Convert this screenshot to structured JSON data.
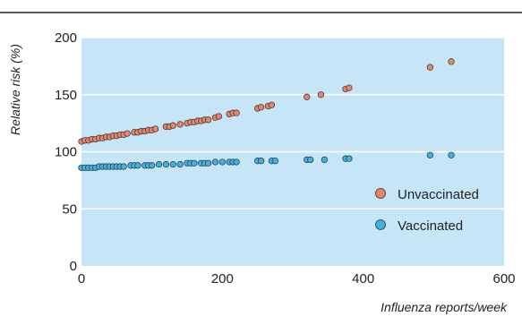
{
  "colors": {
    "plot_background": "#c6e6f7",
    "gridline": "#ffffff",
    "top_rule": "#222222",
    "unvaccinated": "#e8846a",
    "vaccinated": "#3db3e3",
    "marker_stroke": "#333333"
  },
  "chart_data": {
    "type": "scatter",
    "xlabel": "Influenza reports/week",
    "ylabel": "Relative risk (%)",
    "xlim": [
      0,
      600
    ],
    "ylim": [
      0,
      200
    ],
    "xticks": [
      "0",
      "200",
      "400",
      "600"
    ],
    "yticks": [
      "0",
      "50",
      "100",
      "150",
      "200"
    ],
    "grid": "horizontal",
    "legend_position": "bottom-right",
    "series": [
      {
        "name": "Unvaccinated",
        "color": "#e8846a",
        "points": [
          [
            0,
            109
          ],
          [
            5,
            110
          ],
          [
            10,
            110
          ],
          [
            15,
            111
          ],
          [
            20,
            111
          ],
          [
            25,
            112
          ],
          [
            30,
            112
          ],
          [
            35,
            113
          ],
          [
            40,
            113
          ],
          [
            45,
            114
          ],
          [
            50,
            114
          ],
          [
            55,
            115
          ],
          [
            60,
            115
          ],
          [
            65,
            116
          ],
          [
            75,
            117
          ],
          [
            80,
            117
          ],
          [
            85,
            118
          ],
          [
            90,
            118
          ],
          [
            95,
            119
          ],
          [
            100,
            119
          ],
          [
            105,
            120
          ],
          [
            120,
            122
          ],
          [
            125,
            122
          ],
          [
            130,
            123
          ],
          [
            140,
            124
          ],
          [
            150,
            125
          ],
          [
            155,
            126
          ],
          [
            160,
            126
          ],
          [
            165,
            127
          ],
          [
            170,
            127
          ],
          [
            175,
            128
          ],
          [
            180,
            128
          ],
          [
            190,
            130
          ],
          [
            195,
            131
          ],
          [
            210,
            133
          ],
          [
            215,
            134
          ],
          [
            220,
            134
          ],
          [
            250,
            138
          ],
          [
            255,
            139
          ],
          [
            265,
            140
          ],
          [
            270,
            141
          ],
          [
            320,
            148
          ],
          [
            340,
            150
          ],
          [
            375,
            155
          ],
          [
            380,
            156
          ],
          [
            495,
            174
          ],
          [
            525,
            179
          ]
        ]
      },
      {
        "name": "Vaccinated",
        "color": "#3db3e3",
        "points": [
          [
            0,
            86
          ],
          [
            5,
            86
          ],
          [
            10,
            86
          ],
          [
            15,
            86
          ],
          [
            20,
            86
          ],
          [
            25,
            87
          ],
          [
            30,
            87
          ],
          [
            35,
            87
          ],
          [
            40,
            87
          ],
          [
            45,
            87
          ],
          [
            50,
            87
          ],
          [
            55,
            87
          ],
          [
            60,
            87
          ],
          [
            70,
            88
          ],
          [
            75,
            88
          ],
          [
            80,
            88
          ],
          [
            90,
            88
          ],
          [
            95,
            88
          ],
          [
            100,
            88
          ],
          [
            110,
            89
          ],
          [
            120,
            89
          ],
          [
            130,
            89
          ],
          [
            140,
            89
          ],
          [
            150,
            90
          ],
          [
            155,
            90
          ],
          [
            160,
            90
          ],
          [
            170,
            90
          ],
          [
            175,
            90
          ],
          [
            180,
            90
          ],
          [
            190,
            91
          ],
          [
            200,
            91
          ],
          [
            210,
            91
          ],
          [
            215,
            91
          ],
          [
            220,
            91
          ],
          [
            250,
            92
          ],
          [
            255,
            92
          ],
          [
            270,
            92
          ],
          [
            275,
            92
          ],
          [
            320,
            93
          ],
          [
            325,
            93
          ],
          [
            345,
            93
          ],
          [
            375,
            94
          ],
          [
            380,
            94
          ],
          [
            495,
            97
          ],
          [
            525,
            97
          ]
        ]
      }
    ]
  }
}
